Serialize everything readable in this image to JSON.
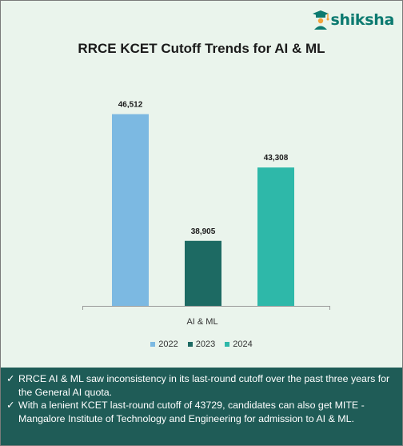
{
  "brand": {
    "name": "shiksha"
  },
  "chart_data": {
    "type": "bar",
    "title": "RRCE KCET Cutoff Trends for AI & ML",
    "categories": [
      "AI & ML"
    ],
    "series": [
      {
        "name": "2022",
        "values": [
          46512
        ],
        "label": "46,512",
        "color": "#7cb9e2"
      },
      {
        "name": "2023",
        "values": [
          38905
        ],
        "label": "38,905",
        "color": "#1d6a63"
      },
      {
        "name": "2024",
        "values": [
          43308
        ],
        "label": "43,308",
        "color": "#2eb8a9"
      }
    ],
    "ylim": [
      35000,
      47500
    ],
    "grid": false,
    "legend": "bottom"
  },
  "notes": [
    "RRCE AI & ML saw inconsistency in its last-round cutoff over the past three years for the General AI quota.",
    "With a lenient KCET last-round cutoff of 43729, candidates can also get MITE - Mangalore Institute of Technology and Engineering for admission to AI & ML."
  ],
  "tick_glyph": "✓"
}
